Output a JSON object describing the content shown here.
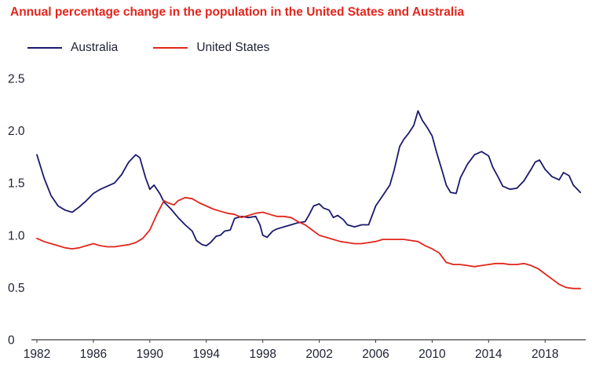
{
  "title": "Annual percentage change in the population in the United States and Australia",
  "colors": {
    "title": "#e3261d",
    "text": "#1e2134",
    "axis_line": "#3c3c3c",
    "background": "#ffffff",
    "australia": "#1a1a6c",
    "united_states": "#e0261c"
  },
  "legend": [
    {
      "label": "Australia",
      "color": "#1a1a6c"
    },
    {
      "label": "United States",
      "color": "#e0261c"
    }
  ],
  "chart_data": {
    "type": "line",
    "title": "Annual percentage change in the population in the United States and Australia",
    "xlabel": "",
    "ylabel": "",
    "xlim": [
      1982,
      2020.6
    ],
    "ylim": [
      0,
      2.5
    ],
    "grid": false,
    "legend_position": "top-left",
    "x_ticks": [
      1982,
      1986,
      1990,
      1994,
      1998,
      2002,
      2006,
      2010,
      2014,
      2018
    ],
    "y_ticks": [
      0,
      0.5,
      1.0,
      1.5,
      2.0,
      2.5
    ],
    "y_tick_labels": [
      "0",
      "0.5",
      "1.0",
      "1.5",
      "2.0",
      "2.5"
    ],
    "series": [
      {
        "name": "Australia",
        "color": "#1a1a6c",
        "x": [
          1982,
          1982.5,
          1983,
          1983.5,
          1984,
          1984.5,
          1985,
          1985.5,
          1986,
          1986.5,
          1987,
          1987.5,
          1988,
          1988.5,
          1989,
          1989.3,
          1989.7,
          1990,
          1990.3,
          1990.7,
          1991,
          1991.5,
          1992,
          1992.5,
          1993,
          1993.3,
          1993.7,
          1994,
          1994.3,
          1994.7,
          1995,
          1995.3,
          1995.7,
          1996,
          1996.5,
          1997,
          1997.5,
          1997.8,
          1998,
          1998.3,
          1998.7,
          1999,
          1999.5,
          2000,
          2000.5,
          2001,
          2001.3,
          2001.6,
          2002,
          2002.3,
          2002.7,
          2003,
          2003.3,
          2003.7,
          2004,
          2004.5,
          2005,
          2005.5,
          2006,
          2006.5,
          2007,
          2007.3,
          2007.7,
          2008,
          2008.3,
          2008.7,
          2009,
          2009.3,
          2009.7,
          2010,
          2010.3,
          2010.7,
          2011,
          2011.3,
          2011.7,
          2012,
          2012.5,
          2013,
          2013.5,
          2014,
          2014.3,
          2014.7,
          2015,
          2015.5,
          2016,
          2016.5,
          2017,
          2017.3,
          2017.6,
          2018,
          2018.5,
          2019,
          2019.3,
          2019.7,
          2020,
          2020.5
        ],
        "values": [
          1.77,
          1.55,
          1.38,
          1.28,
          1.24,
          1.22,
          1.27,
          1.33,
          1.4,
          1.44,
          1.47,
          1.5,
          1.58,
          1.7,
          1.77,
          1.74,
          1.55,
          1.44,
          1.48,
          1.4,
          1.32,
          1.25,
          1.17,
          1.1,
          1.04,
          0.95,
          0.91,
          0.9,
          0.93,
          0.99,
          1.0,
          1.04,
          1.05,
          1.16,
          1.18,
          1.17,
          1.18,
          1.1,
          1.0,
          0.98,
          1.04,
          1.06,
          1.08,
          1.1,
          1.12,
          1.13,
          1.2,
          1.28,
          1.3,
          1.26,
          1.24,
          1.17,
          1.19,
          1.15,
          1.1,
          1.08,
          1.1,
          1.1,
          1.28,
          1.38,
          1.48,
          1.62,
          1.85,
          1.92,
          1.97,
          2.05,
          2.19,
          2.1,
          2.02,
          1.95,
          1.8,
          1.62,
          1.48,
          1.41,
          1.4,
          1.55,
          1.68,
          1.77,
          1.8,
          1.76,
          1.65,
          1.55,
          1.47,
          1.44,
          1.45,
          1.52,
          1.63,
          1.7,
          1.72,
          1.63,
          1.56,
          1.53,
          1.6,
          1.57,
          1.48,
          1.41
        ]
      },
      {
        "name": "United States",
        "color": "#e0261c",
        "x": [
          1982,
          1982.5,
          1983,
          1983.5,
          1984,
          1984.5,
          1985,
          1985.5,
          1986,
          1986.5,
          1987,
          1987.5,
          1988,
          1988.5,
          1989,
          1989.5,
          1990,
          1990.5,
          1991,
          1991.3,
          1991.7,
          1992,
          1992.5,
          1993,
          1993.5,
          1994,
          1994.5,
          1995,
          1995.5,
          1996,
          1996.5,
          1997,
          1997.5,
          1998,
          1998.5,
          1999,
          1999.5,
          2000,
          2000.5,
          2001,
          2001.5,
          2002,
          2002.5,
          2003,
          2003.5,
          2004,
          2004.5,
          2005,
          2005.5,
          2006,
          2006.5,
          2007,
          2007.5,
          2008,
          2008.5,
          2009,
          2009.5,
          2010,
          2010.5,
          2011,
          2011.5,
          2012,
          2012.5,
          2013,
          2013.5,
          2014,
          2014.5,
          2015,
          2015.5,
          2016,
          2016.5,
          2017,
          2017.5,
          2018,
          2018.5,
          2019,
          2019.5,
          2020,
          2020.5
        ],
        "values": [
          0.97,
          0.94,
          0.92,
          0.9,
          0.88,
          0.87,
          0.88,
          0.9,
          0.92,
          0.9,
          0.89,
          0.89,
          0.9,
          0.91,
          0.93,
          0.97,
          1.05,
          1.2,
          1.33,
          1.31,
          1.29,
          1.33,
          1.36,
          1.35,
          1.31,
          1.28,
          1.25,
          1.23,
          1.21,
          1.2,
          1.17,
          1.19,
          1.21,
          1.22,
          1.2,
          1.18,
          1.18,
          1.17,
          1.13,
          1.1,
          1.05,
          1.0,
          0.98,
          0.96,
          0.94,
          0.93,
          0.92,
          0.92,
          0.93,
          0.94,
          0.96,
          0.96,
          0.96,
          0.96,
          0.95,
          0.94,
          0.9,
          0.87,
          0.83,
          0.74,
          0.72,
          0.72,
          0.71,
          0.7,
          0.71,
          0.72,
          0.73,
          0.73,
          0.72,
          0.72,
          0.73,
          0.71,
          0.68,
          0.63,
          0.58,
          0.53,
          0.5,
          0.49,
          0.49
        ]
      }
    ]
  }
}
